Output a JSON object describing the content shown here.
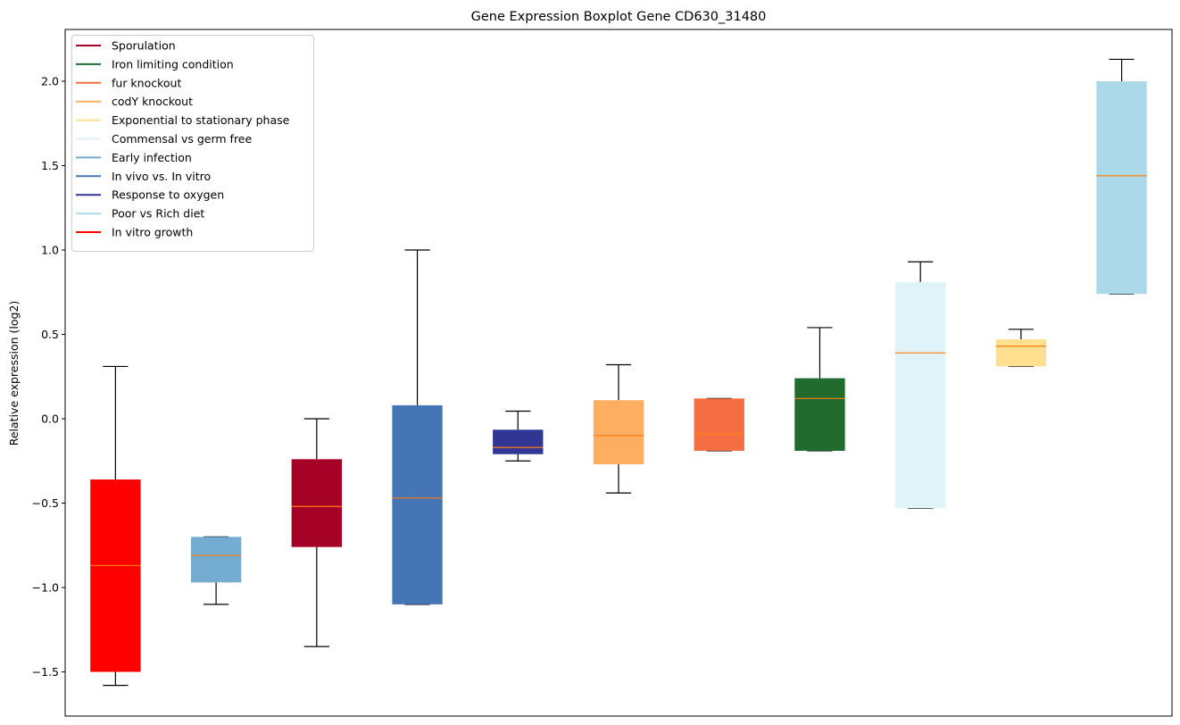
{
  "chart_data": {
    "type": "boxplot",
    "title": "Gene Expression Boxplot Gene CD630_31480",
    "xlabel": "",
    "ylabel": "Relative expression (log2)",
    "ylim": [
      -1.762,
      2.307
    ],
    "xlim": [
      0.5,
      11.5
    ],
    "grid": false,
    "yticks": [
      -1.5,
      -1.0,
      -0.5,
      0.0,
      0.5,
      1.0,
      1.5,
      2.0
    ],
    "ytick_labels": [
      "−1.5",
      "−1.0",
      "−0.5",
      "0.0",
      "0.5",
      "1.0",
      "1.5",
      "2.0"
    ],
    "median_color": "#ff7f0e",
    "legend_placement": "top-left",
    "legend": [
      {
        "label": "Sporulation",
        "color": "#a50026"
      },
      {
        "label": "Iron limiting condition",
        "color": "#226b2e"
      },
      {
        "label": "fur knockout",
        "color": "#f46d43"
      },
      {
        "label": "codY knockout",
        "color": "#fdae61"
      },
      {
        "label": "Exponential to stationary phase",
        "color": "#fee090"
      },
      {
        "label": "Commensal vs germ free",
        "color": "#e0f3f8"
      },
      {
        "label": "Early infection",
        "color": "#74add1"
      },
      {
        "label": "In vivo vs. In vitro",
        "color": "#4575b4"
      },
      {
        "label": "Response to oxygen",
        "color": "#313695"
      },
      {
        "label": "Poor vs Rich diet",
        "color": "#abd9e9"
      },
      {
        "label": "In vitro growth",
        "color": "#ff0000"
      }
    ],
    "boxes": [
      {
        "name": "In vitro growth",
        "color": "#ff0000",
        "whislo": -1.58,
        "q1": -1.5,
        "med": -0.87,
        "q3": -0.36,
        "whishi": 0.31
      },
      {
        "name": "Early infection",
        "color": "#74add1",
        "whislo": -1.1,
        "q1": -0.97,
        "med": -0.81,
        "q3": -0.7,
        "whishi": -0.7
      },
      {
        "name": "Sporulation",
        "color": "#a50026",
        "whislo": -1.35,
        "q1": -0.76,
        "med": -0.52,
        "q3": -0.24,
        "whishi": 0.0
      },
      {
        "name": "In vivo vs. In vitro",
        "color": "#4575b4",
        "whislo": -1.1,
        "q1": -1.1,
        "med": -0.47,
        "q3": 0.08,
        "whishi": 1.0
      },
      {
        "name": "Response to oxygen",
        "color": "#313695",
        "whislo": -0.25,
        "q1": -0.21,
        "med": -0.17,
        "q3": -0.065,
        "whishi": 0.045
      },
      {
        "name": "codY knockout",
        "color": "#fdae61",
        "whislo": -0.44,
        "q1": -0.27,
        "med": -0.1,
        "q3": 0.11,
        "whishi": 0.32
      },
      {
        "name": "fur knockout",
        "color": "#f46d43",
        "whislo": -0.19,
        "q1": -0.19,
        "med": -0.09,
        "q3": 0.12,
        "whishi": 0.12
      },
      {
        "name": "Iron limiting condition",
        "color": "#226b2e",
        "whislo": -0.19,
        "q1": -0.19,
        "med": 0.12,
        "q3": 0.24,
        "whishi": 0.54
      },
      {
        "name": "Commensal vs germ free",
        "color": "#e0f3f8",
        "whislo": -0.53,
        "q1": -0.53,
        "med": 0.39,
        "q3": 0.81,
        "whishi": 0.93
      },
      {
        "name": "Exponential to stationary phase",
        "color": "#fee090",
        "whislo": 0.31,
        "q1": 0.31,
        "med": 0.43,
        "q3": 0.47,
        "whishi": 0.53
      },
      {
        "name": "Poor vs Rich diet",
        "color": "#abd9e9",
        "whislo": 0.74,
        "q1": 0.74,
        "med": 1.44,
        "q3": 2.0,
        "whishi": 2.13
      }
    ]
  }
}
